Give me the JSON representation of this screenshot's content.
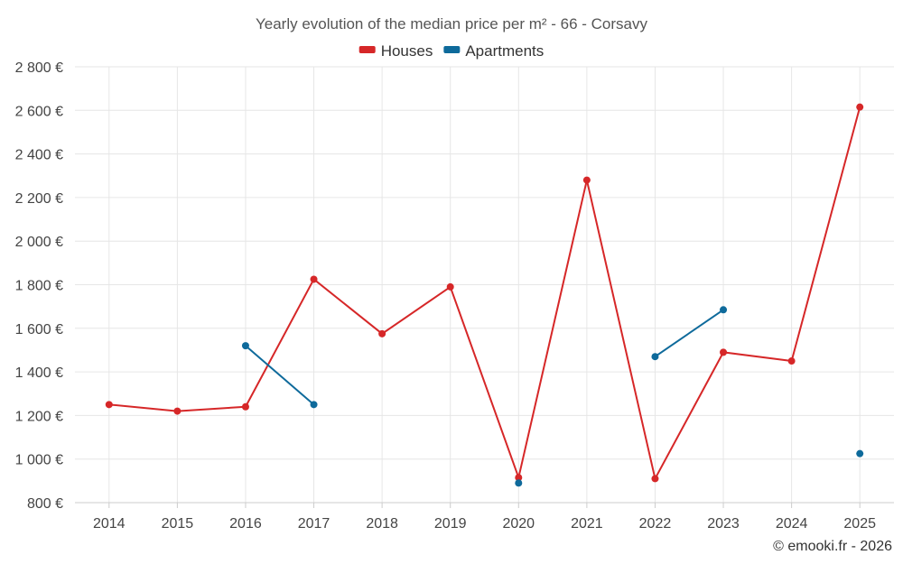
{
  "chart_data": {
    "type": "line",
    "title": "Yearly evolution of the median price per m² - 66 - Corsavy",
    "categories": [
      "2014",
      "2015",
      "2016",
      "2017",
      "2018",
      "2019",
      "2020",
      "2021",
      "2022",
      "2023",
      "2024",
      "2025"
    ],
    "ylim": [
      800,
      2800
    ],
    "yticks": [
      800,
      1000,
      1200,
      1400,
      1600,
      1800,
      2000,
      2200,
      2400,
      2600,
      2800
    ],
    "ytick_labels": [
      "800 €",
      "1 000 €",
      "1 200 €",
      "1 400 €",
      "1 600 €",
      "1 800 €",
      "2 000 €",
      "2 200 €",
      "2 400 €",
      "2 600 €",
      "2 800 €"
    ],
    "grid": true,
    "legend_position": "top-center",
    "series": [
      {
        "name": "Houses",
        "color": "#d62728",
        "values": [
          1250,
          1220,
          1240,
          1825,
          1575,
          1790,
          915,
          2280,
          910,
          1490,
          1450,
          2615
        ]
      },
      {
        "name": "Apartments",
        "color": "#0e6a9b",
        "values": [
          null,
          null,
          1520,
          1250,
          null,
          null,
          890,
          null,
          1470,
          1685,
          null,
          1025
        ]
      }
    ]
  },
  "credit": "© emooki.fr - 2026"
}
